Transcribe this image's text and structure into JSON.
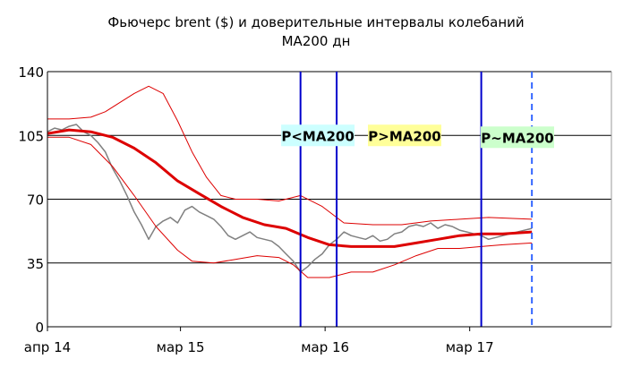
{
  "chart_data": {
    "type": "line",
    "title": "Фьючерс brent ($) и доверительные интервалы колебаний",
    "subtitle": "MA200 дн",
    "ylim": [
      0,
      140
    ],
    "yticks": [
      0,
      35,
      70,
      105,
      140
    ],
    "ytick_labels": [
      "0",
      "35",
      "70",
      "105",
      "140"
    ],
    "xticks": [
      "апр 14",
      "мар 15",
      "мар 16",
      "мар 17"
    ],
    "xtick_positions": [
      2014.25,
      2015.17,
      2016.17,
      2017.17
    ],
    "xlim": [
      2014.25,
      2018.15
    ],
    "grid": "horizontal",
    "vertical_markers": [
      {
        "x": 2016.0,
        "style": "solid"
      },
      {
        "x": 2016.25,
        "style": "solid"
      },
      {
        "x": 2017.25,
        "style": "solid"
      },
      {
        "x": 2017.6,
        "style": "dashed"
      }
    ],
    "annotations": [
      {
        "text": "P<MA200",
        "x": 2016.12,
        "y": 105,
        "bg": "#ccffff"
      },
      {
        "text": "P>MA200",
        "x": 2016.72,
        "y": 105,
        "bg": "#ffff99"
      },
      {
        "text": "P~MA200",
        "x": 2017.5,
        "y": 104,
        "bg": "#ccffcc"
      }
    ],
    "series": [
      {
        "role": "price",
        "color": "#808080",
        "x": [
          2014.25,
          2014.3,
          2014.35,
          2014.4,
          2014.45,
          2014.5,
          2014.55,
          2014.6,
          2014.65,
          2014.7,
          2014.75,
          2014.8,
          2014.85,
          2014.9,
          2014.95,
          2015.0,
          2015.05,
          2015.1,
          2015.15,
          2015.2,
          2015.25,
          2015.3,
          2015.35,
          2015.4,
          2015.45,
          2015.5,
          2015.55,
          2015.6,
          2015.65,
          2015.7,
          2015.75,
          2015.8,
          2015.85,
          2015.9,
          2015.95,
          2016.0,
          2016.05,
          2016.1,
          2016.15,
          2016.2,
          2016.25,
          2016.3,
          2016.35,
          2016.4,
          2016.45,
          2016.5,
          2016.55,
          2016.6,
          2016.65,
          2016.7,
          2016.75,
          2016.8,
          2016.85,
          2016.9,
          2016.95,
          2017.0,
          2017.05,
          2017.1,
          2017.15,
          2017.2,
          2017.25,
          2017.3,
          2017.35,
          2017.4,
          2017.45,
          2017.5,
          2017.55,
          2017.6
        ],
        "y": [
          107,
          109,
          108,
          110,
          111,
          107,
          105,
          101,
          96,
          87,
          80,
          72,
          63,
          56,
          48,
          55,
          58,
          60,
          57,
          64,
          66,
          63,
          61,
          59,
          55,
          50,
          48,
          50,
          52,
          49,
          48,
          47,
          44,
          40,
          36,
          30,
          33,
          37,
          40,
          45,
          48,
          52,
          50,
          49,
          48,
          50,
          47,
          48,
          51,
          52,
          55,
          56,
          55,
          57,
          54,
          56,
          55,
          53,
          52,
          51,
          50,
          48,
          49,
          50,
          51,
          52,
          53,
          54
        ]
      },
      {
        "role": "MA200",
        "color": "#dd0000",
        "x": [
          2014.25,
          2014.4,
          2014.55,
          2014.7,
          2014.85,
          2015.0,
          2015.15,
          2015.3,
          2015.45,
          2015.6,
          2015.75,
          2015.9,
          2016.05,
          2016.2,
          2016.35,
          2016.5,
          2016.65,
          2016.8,
          2016.95,
          2017.1,
          2017.25,
          2017.4,
          2017.6
        ],
        "y": [
          106,
          108,
          107,
          104,
          98,
          90,
          80,
          73,
          66,
          60,
          56,
          54,
          49,
          45,
          44,
          44,
          44,
          46,
          48,
          50,
          51,
          51,
          52
        ]
      },
      {
        "role": "upper-band",
        "color": "#dd0000",
        "x": [
          2014.25,
          2014.4,
          2014.55,
          2014.65,
          2014.75,
          2014.85,
          2014.95,
          2015.05,
          2015.15,
          2015.25,
          2015.35,
          2015.45,
          2015.55,
          2015.7,
          2015.85,
          2016.0,
          2016.15,
          2016.3,
          2016.5,
          2016.7,
          2016.9,
          2017.1,
          2017.3,
          2017.6
        ],
        "y": [
          114,
          114,
          115,
          118,
          123,
          128,
          132,
          128,
          113,
          96,
          82,
          72,
          70,
          70,
          69,
          72,
          66,
          57,
          56,
          56,
          58,
          59,
          60,
          59
        ]
      },
      {
        "role": "lower-band",
        "color": "#dd0000",
        "x": [
          2014.25,
          2014.4,
          2014.55,
          2014.7,
          2014.85,
          2015.0,
          2015.15,
          2015.25,
          2015.4,
          2015.55,
          2015.7,
          2015.85,
          2015.95,
          2016.05,
          2016.2,
          2016.35,
          2016.5,
          2016.65,
          2016.8,
          2016.95,
          2017.1,
          2017.25,
          2017.4,
          2017.6
        ],
        "y": [
          104,
          104,
          100,
          88,
          72,
          55,
          42,
          36,
          35,
          37,
          39,
          38,
          34,
          27,
          27,
          30,
          30,
          34,
          39,
          43,
          43,
          44,
          45,
          46
        ]
      }
    ]
  }
}
